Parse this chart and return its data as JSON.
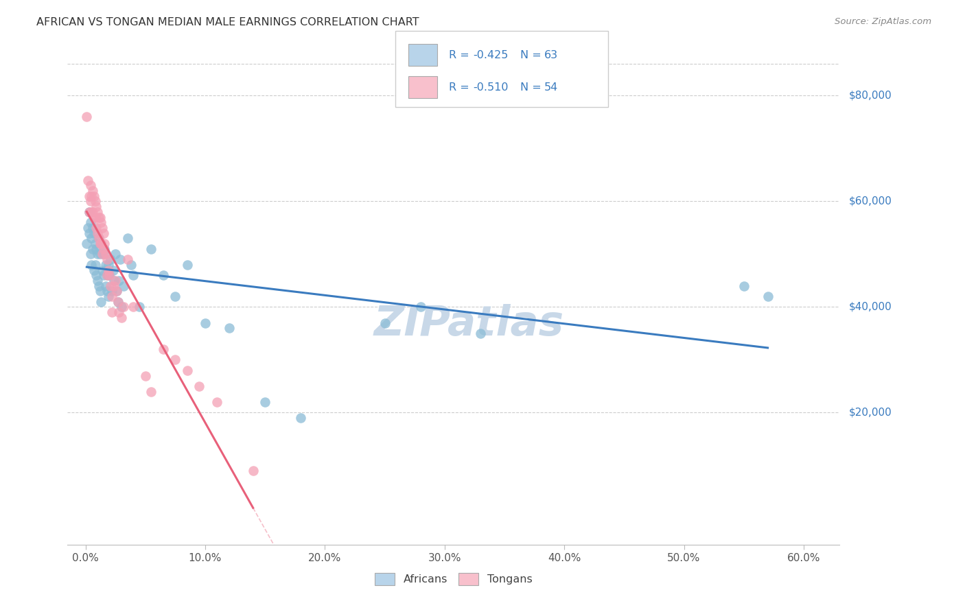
{
  "title": "AFRICAN VS TONGAN MEDIAN MALE EARNINGS CORRELATION CHART",
  "source": "Source: ZipAtlas.com",
  "xlabel_ticks": [
    "0.0%",
    "10.0%",
    "20.0%",
    "30.0%",
    "40.0%",
    "50.0%",
    "60.0%"
  ],
  "xlabel_vals": [
    0.0,
    0.1,
    0.2,
    0.3,
    0.4,
    0.5,
    0.6
  ],
  "ylabel_ticks": [
    "$20,000",
    "$40,000",
    "$60,000",
    "$80,000"
  ],
  "ylabel_vals": [
    20000,
    40000,
    60000,
    80000
  ],
  "xlim": [
    -0.015,
    0.63
  ],
  "ylim": [
    -5000,
    90000
  ],
  "african_R": "-0.425",
  "african_N": "63",
  "tongan_R": "-0.510",
  "tongan_N": "54",
  "african_color": "#8bbcd6",
  "tongan_color": "#f4a0b5",
  "african_line_color": "#3a7bbf",
  "tongan_line_color": "#e8607a",
  "watermark_color": "#c8d8e8",
  "legend_african_face": "#b8d4ea",
  "legend_tongan_face": "#f8c0cc",
  "africans_x": [
    0.001,
    0.002,
    0.003,
    0.003,
    0.004,
    0.004,
    0.005,
    0.005,
    0.006,
    0.006,
    0.007,
    0.007,
    0.008,
    0.008,
    0.009,
    0.009,
    0.01,
    0.01,
    0.011,
    0.011,
    0.012,
    0.012,
    0.013,
    0.013,
    0.014,
    0.015,
    0.015,
    0.016,
    0.017,
    0.017,
    0.018,
    0.018,
    0.019,
    0.019,
    0.02,
    0.021,
    0.022,
    0.023,
    0.024,
    0.025,
    0.026,
    0.027,
    0.028,
    0.029,
    0.03,
    0.032,
    0.035,
    0.038,
    0.04,
    0.045,
    0.055,
    0.065,
    0.075,
    0.085,
    0.1,
    0.12,
    0.15,
    0.18,
    0.25,
    0.28,
    0.33,
    0.55,
    0.57
  ],
  "africans_y": [
    52000,
    55000,
    58000,
    54000,
    56000,
    50000,
    53000,
    48000,
    55000,
    51000,
    54000,
    47000,
    52000,
    48000,
    51000,
    46000,
    50000,
    45000,
    53000,
    44000,
    50000,
    43000,
    52000,
    41000,
    47000,
    50000,
    46000,
    51000,
    44000,
    48000,
    46000,
    43000,
    48000,
    42000,
    46000,
    49000,
    43000,
    47000,
    45000,
    50000,
    43000,
    41000,
    45000,
    49000,
    40000,
    44000,
    53000,
    48000,
    46000,
    40000,
    51000,
    46000,
    42000,
    48000,
    37000,
    36000,
    22000,
    19000,
    37000,
    40000,
    35000,
    44000,
    42000
  ],
  "tongans_x": [
    0.001,
    0.002,
    0.003,
    0.003,
    0.004,
    0.004,
    0.005,
    0.005,
    0.006,
    0.006,
    0.007,
    0.007,
    0.008,
    0.008,
    0.009,
    0.009,
    0.01,
    0.01,
    0.011,
    0.011,
    0.012,
    0.012,
    0.013,
    0.013,
    0.014,
    0.014,
    0.015,
    0.015,
    0.016,
    0.017,
    0.018,
    0.018,
    0.019,
    0.02,
    0.021,
    0.022,
    0.022,
    0.024,
    0.025,
    0.026,
    0.027,
    0.028,
    0.03,
    0.032,
    0.035,
    0.04,
    0.05,
    0.055,
    0.065,
    0.075,
    0.085,
    0.095,
    0.11,
    0.14
  ],
  "tongans_y": [
    76000,
    64000,
    61000,
    58000,
    63000,
    60000,
    61000,
    58000,
    62000,
    58000,
    61000,
    57000,
    60000,
    57000,
    59000,
    55000,
    58000,
    54000,
    57000,
    53000,
    57000,
    52000,
    56000,
    52000,
    55000,
    50000,
    54000,
    51000,
    52000,
    50000,
    49000,
    46000,
    47000,
    46000,
    44000,
    42000,
    39000,
    44000,
    45000,
    43000,
    41000,
    39000,
    38000,
    40000,
    49000,
    40000,
    27000,
    24000,
    32000,
    30000,
    28000,
    25000,
    22000,
    9000
  ]
}
